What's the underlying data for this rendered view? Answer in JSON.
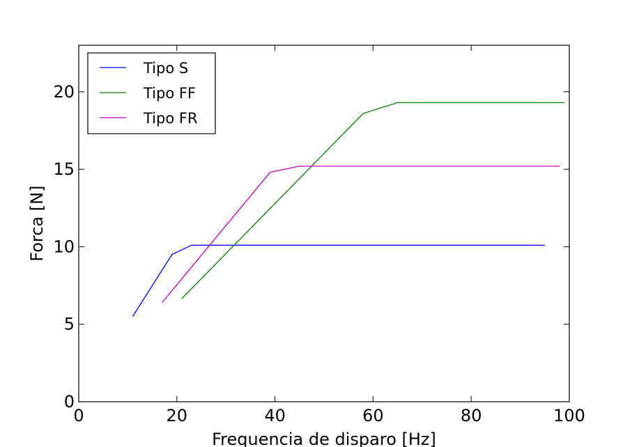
{
  "chart_data": {
    "type": "line",
    "title": "",
    "xlabel": "Frequencia de disparo [Hz]",
    "ylabel": "Forca [N]",
    "xlim": [
      0,
      100
    ],
    "ylim": [
      0,
      23
    ],
    "xticks": [
      0,
      20,
      40,
      60,
      80,
      100
    ],
    "yticks": [
      0,
      5,
      10,
      15,
      20
    ],
    "grid": false,
    "legend_position": "top-left",
    "series": [
      {
        "name": "Tipo S",
        "color": "#0000ff",
        "x": [
          11,
          19,
          23,
          95
        ],
        "y": [
          5.5,
          9.5,
          10.1,
          10.1
        ]
      },
      {
        "name": "Tipo FF",
        "color": "#008000",
        "x": [
          21,
          58,
          65,
          99
        ],
        "y": [
          6.65,
          18.6,
          19.3,
          19.3
        ]
      },
      {
        "name": "Tipo FR",
        "color": "#bf00bf",
        "x": [
          17,
          39,
          45,
          98
        ],
        "y": [
          6.4,
          14.8,
          15.2,
          15.2
        ]
      }
    ]
  }
}
